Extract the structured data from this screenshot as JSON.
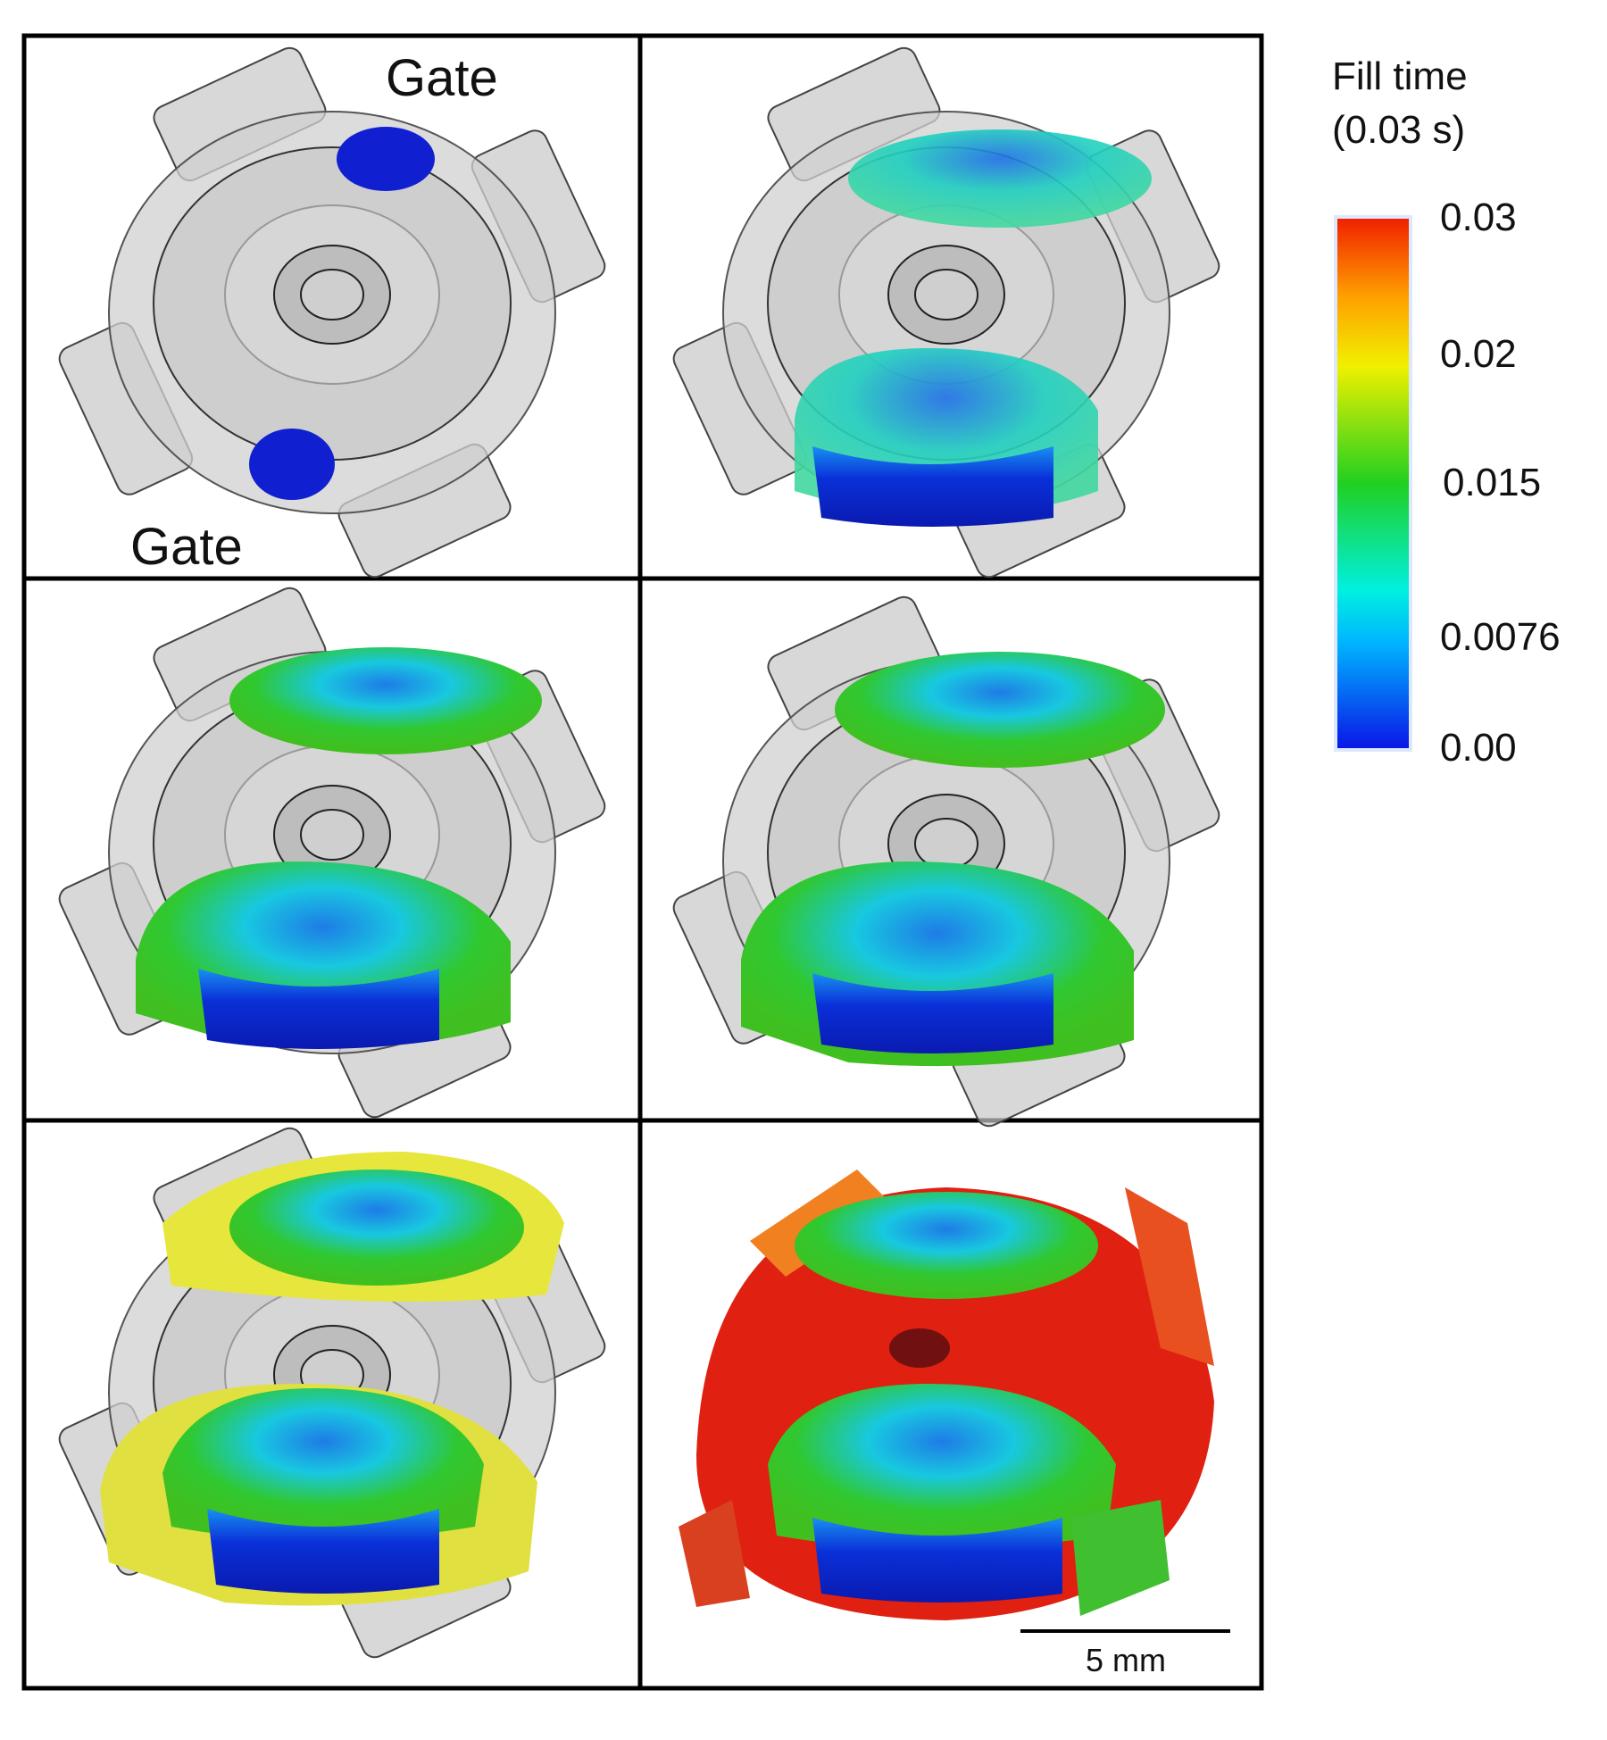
{
  "panels": {
    "gate_labels": [
      "Gate",
      "Gate"
    ]
  },
  "colorbar": {
    "title": [
      "Fill time",
      "(0.03 s)"
    ],
    "ticks": [
      "0.03",
      "0.02",
      "0.015",
      "0.0076",
      "0.00"
    ]
  },
  "scale_bar": {
    "label": "5 mm"
  }
}
